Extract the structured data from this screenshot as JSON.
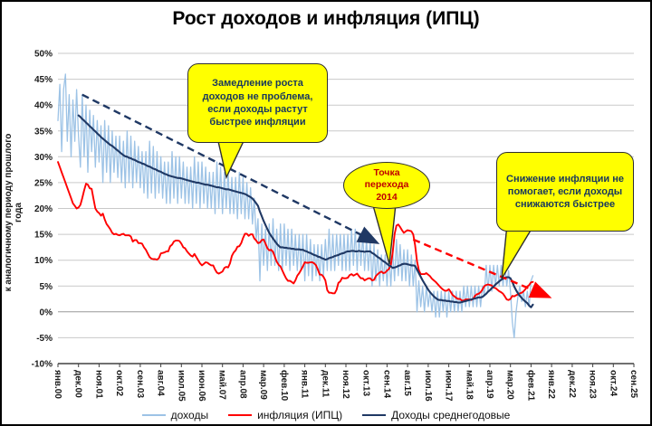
{
  "chart_data": {
    "type": "line",
    "title": "Рост  доходов и инфляция (ИПЦ)",
    "ylabel": "к аналогичному периоду прошлого года",
    "ylim": [
      -10,
      50
    ],
    "y_step": 5,
    "y_ticks": [
      "-10%",
      "-5%",
      "0%",
      "5%",
      "10%",
      "15%",
      "20%",
      "25%",
      "30%",
      "35%",
      "40%",
      "45%",
      "50%"
    ],
    "grid": "horizontal",
    "legend_position": "bottom",
    "x_unit": "monthly, month index 0 = янв.00",
    "x_total_months": 308,
    "x_ticks": [
      {
        "label": "янв.00",
        "month": 0
      },
      {
        "label": "дек.00",
        "month": 11
      },
      {
        "label": "ноя.01",
        "month": 22
      },
      {
        "label": "окт.02",
        "month": 33
      },
      {
        "label": "сен.03",
        "month": 44
      },
      {
        "label": "авг.04",
        "month": 55
      },
      {
        "label": "июл.05",
        "month": 66
      },
      {
        "label": "июн.06",
        "month": 77
      },
      {
        "label": "май.07",
        "month": 88
      },
      {
        "label": "апр.08",
        "month": 99
      },
      {
        "label": "мар.09",
        "month": 110
      },
      {
        "label": "фев.10",
        "month": 121
      },
      {
        "label": "янв.11",
        "month": 132
      },
      {
        "label": "дек.11",
        "month": 143
      },
      {
        "label": "ноя.12",
        "month": 154
      },
      {
        "label": "окт.13",
        "month": 165
      },
      {
        "label": "сен.14",
        "month": 176
      },
      {
        "label": "авг.15",
        "month": 187
      },
      {
        "label": "июл.16",
        "month": 198
      },
      {
        "label": "июн.17",
        "month": 209
      },
      {
        "label": "май.18",
        "month": 220
      },
      {
        "label": "апр.19",
        "month": 231
      },
      {
        "label": "мар.20",
        "month": 242
      },
      {
        "label": "фев.21",
        "month": 253
      },
      {
        "label": "янв.22",
        "month": 264
      },
      {
        "label": "дек.22",
        "month": 275
      },
      {
        "label": "ноя.23",
        "month": 286
      },
      {
        "label": "окт.24",
        "month": 297
      },
      {
        "label": "сен.25",
        "month": 308
      }
    ],
    "series": [
      {
        "name": "доходы",
        "color": "#9DC3E6",
        "width": 1.3,
        "start_month": 0,
        "values": [
          37,
          44,
          31,
          43,
          46,
          33,
          42,
          30,
          41,
          33,
          43,
          34,
          28,
          42,
          30,
          40,
          27,
          39,
          31,
          38,
          28,
          37,
          29,
          36,
          25,
          37,
          27,
          36,
          25,
          35,
          27,
          34,
          26,
          34,
          25,
          33,
          24,
          35,
          25,
          34,
          24,
          33,
          25,
          32,
          24,
          31,
          23,
          31,
          22,
          33,
          23,
          32,
          22,
          31,
          23,
          30,
          22,
          29,
          21,
          29,
          21,
          31,
          22,
          30,
          21,
          30,
          22,
          29,
          21,
          28,
          21,
          28,
          20,
          30,
          21,
          29,
          20,
          29,
          21,
          28,
          20,
          27,
          20,
          27,
          19,
          29,
          20,
          28,
          19,
          27,
          20,
          27,
          19,
          26,
          19,
          26,
          18,
          27,
          19,
          26,
          18,
          25,
          18,
          24,
          17,
          22,
          14,
          18,
          6,
          17,
          9,
          16,
          8,
          17,
          9,
          18,
          9,
          16,
          8,
          17,
          8,
          17,
          9,
          16,
          8,
          16,
          9,
          15,
          8,
          15,
          8,
          15,
          6,
          15,
          7,
          14,
          6,
          13,
          7,
          13,
          6,
          13,
          7,
          14,
          8,
          16,
          8,
          15,
          8,
          15,
          9,
          15,
          8,
          15,
          8,
          15,
          8,
          16,
          9,
          16,
          8,
          15,
          9,
          15,
          8,
          14,
          8,
          14,
          5,
          13,
          6,
          12,
          5,
          11,
          6,
          11,
          5,
          11,
          5,
          12,
          6,
          14,
          7,
          13,
          6,
          12,
          6,
          12,
          5,
          11,
          5,
          10,
          0,
          6,
          1,
          5,
          0,
          5,
          1,
          4,
          0,
          4,
          -1,
          4,
          -1,
          4,
          0,
          4,
          -1,
          4,
          0,
          4,
          0,
          4,
          0,
          4,
          0,
          5,
          1,
          5,
          1,
          5,
          1,
          5,
          1,
          5,
          1,
          5,
          3,
          9,
          4,
          9,
          4,
          9,
          5,
          9,
          5,
          9,
          5,
          9,
          5,
          8,
          4,
          -2,
          -5,
          0,
          3,
          5,
          2,
          4,
          1,
          4,
          1,
          6,
          7
        ]
      },
      {
        "name": "инфляция (ИПЦ)",
        "color": "#FF0000",
        "width": 1.9,
        "start_month": 0,
        "values": [
          29,
          28,
          27,
          26,
          25,
          24,
          23,
          22,
          21,
          20.5,
          20,
          20.2,
          20.7,
          22,
          23.5,
          24.8,
          24.6,
          23.9,
          23.8,
          21.9,
          20,
          19.4,
          19.1,
          18.6,
          19,
          17.9,
          17,
          16.5,
          16,
          15.3,
          15,
          15.1,
          14.9,
          14.8,
          15,
          15.1,
          14.8,
          14.8,
          14.8,
          14.6,
          13.6,
          13.9,
          13.9,
          13.3,
          13.3,
          13.2,
          12.5,
          12,
          11.3,
          10.6,
          10.3,
          10.2,
          10.2,
          10.1,
          10.4,
          11.3,
          11.4,
          11.5,
          11.7,
          11.7,
          12.7,
          13,
          13.6,
          13.8,
          13.8,
          13.7,
          13.2,
          12.5,
          12.3,
          11.7,
          11.3,
          10.9,
          10.7,
          11.2,
          10.6,
          10,
          9.4,
          9,
          9.3,
          9.6,
          9.5,
          9.2,
          9,
          9,
          8.2,
          7.6,
          7.4,
          7.6,
          7.8,
          8.5,
          8.7,
          8.6,
          9.4,
          10.8,
          11.5,
          11.9,
          12.6,
          12.7,
          13.3,
          14.3,
          15.1,
          15.1,
          14.7,
          15,
          15,
          14.2,
          13.8,
          13.3,
          13.4,
          13.9,
          14,
          13.2,
          12.3,
          11.9,
          12,
          11.6,
          10.7,
          9.7,
          9.1,
          8.8,
          8,
          7.2,
          6.5,
          6,
          6,
          5.8,
          5.5,
          6.1,
          7,
          7.5,
          8.1,
          8.8,
          9.6,
          9.5,
          9.5,
          9.6,
          9.6,
          9.4,
          9,
          8.2,
          7.2,
          7.2,
          6.8,
          6.1,
          4.2,
          3.7,
          3.7,
          3.6,
          3.6,
          4.3,
          5.6,
          5.9,
          6.6,
          6.5,
          6.5,
          6.6,
          7.1,
          7.3,
          7,
          7.2,
          7.4,
          6.9,
          6.5,
          6.5,
          6.1,
          6.3,
          6.5,
          6.5,
          6.1,
          6.2,
          6.9,
          7.3,
          7.6,
          7.8,
          7.5,
          7.6,
          8,
          8.3,
          9.1,
          11.4,
          15,
          16.7,
          16.9,
          16.4,
          15.8,
          15.3,
          15.6,
          15.8,
          15.7,
          15.6,
          15,
          12.9,
          9.8,
          8.1,
          7.3,
          7.3,
          7.3,
          7.5,
          7.2,
          6.9,
          6.4,
          6.1,
          5.8,
          5.4,
          5,
          4.6,
          4.3,
          4.1,
          4.1,
          4.4,
          3.9,
          3.3,
          3,
          2.7,
          2.5,
          2.5,
          2.2,
          2.2,
          2.4,
          2.4,
          2.4,
          2.3,
          2.5,
          3.1,
          3.4,
          3.5,
          3.8,
          4.3,
          5,
          5.2,
          5.3,
          5.2,
          5.1,
          4.7,
          4.6,
          4.3,
          4,
          3.8,
          3.5,
          3,
          2.4,
          2.3,
          2.5,
          3.1,
          3,
          3.2,
          3.4,
          3.6,
          3.7,
          4,
          4.4,
          4.9,
          5.2,
          5.7,
          5.8
        ]
      },
      {
        "name": "Доходы среднегодовые",
        "color": "#1F3864",
        "width": 2.1,
        "start_month": 11,
        "values": [
          38,
          37.7,
          37.3,
          37,
          36.6,
          36.3,
          35.9,
          35.6,
          35.2,
          34.9,
          34.5,
          34.2,
          33.8,
          33.5,
          33.2,
          32.9,
          32.6,
          32.3,
          32.1,
          31.8,
          31.5,
          31.2,
          30.9,
          30.6,
          30.3,
          30.1,
          30,
          29.8,
          29.7,
          29.5,
          29.4,
          29.2,
          29,
          28.9,
          28.7,
          28.6,
          28.4,
          28.2,
          28.1,
          27.9,
          27.7,
          27.6,
          27.4,
          27.2,
          27.1,
          26.9,
          26.7,
          26.6,
          26.4,
          26.3,
          26.2,
          26.1,
          26,
          25.9,
          25.9,
          25.8,
          25.7,
          25.6,
          25.5,
          25.4,
          25.3,
          25.2,
          25.1,
          25,
          25,
          24.9,
          24.8,
          24.7,
          24.6,
          24.6,
          24.5,
          24.4,
          24.3,
          24.2,
          24.1,
          24.1,
          24,
          23.9,
          23.8,
          23.7,
          23.7,
          23.6,
          23.5,
          23.4,
          23.3,
          23.2,
          23.1,
          23,
          22.9,
          22.8,
          22.6,
          22.4,
          22.2,
          21.9,
          21.5,
          21,
          20.5,
          19.4,
          18.5,
          17.6,
          16.8,
          16,
          15.3,
          14.7,
          14.2,
          13.7,
          13.2,
          12.8,
          12.5,
          12.5,
          12.4,
          12.4,
          12.3,
          12.3,
          12.2,
          12.2,
          12.1,
          12.1,
          12.1,
          12,
          12,
          11.8,
          11.7,
          11.5,
          11.4,
          11.2,
          11,
          10.9,
          10.7,
          10.6,
          10.4,
          10.3,
          10.1,
          10.2,
          10.4,
          10.5,
          10.6,
          10.8,
          10.9,
          11,
          11.2,
          11.3,
          11.4,
          11.6,
          11.7,
          11.7,
          11.8,
          11.8,
          11.7,
          11.7,
          11.8,
          11.7,
          11.7,
          11.6,
          11.7,
          11.7,
          11.7,
          11.4,
          11.2,
          10.9,
          10.6,
          10.4,
          10.1,
          9.8,
          9.6,
          9.3,
          9,
          8.8,
          8.5,
          8.6,
          8.7,
          8.9,
          9,
          9.2,
          9.3,
          9.3,
          9.2,
          9.1,
          9,
          9,
          8.9,
          8.2,
          7.5,
          6.8,
          6.1,
          5.5,
          4.9,
          4.3,
          3.8,
          3.4,
          3,
          2.7,
          2.4,
          2.3,
          2.3,
          2.2,
          2.2,
          2.1,
          2.1,
          2,
          2,
          1.9,
          1.9,
          1.8,
          1.8,
          1.9,
          2,
          2.1,
          2.2,
          2.3,
          2.4,
          2.5,
          2.6,
          2.7,
          2.8,
          2.8,
          2.9,
          3.2,
          3.5,
          3.9,
          4.2,
          4.6,
          4.9,
          5.3,
          5.6,
          5.9,
          6.2,
          6.4,
          6.6,
          6.7,
          6.7,
          6.5,
          5.8,
          4.9,
          4.2,
          3.6,
          3.1,
          2.7,
          2.3,
          2,
          1.7,
          1.2,
          0.9,
          1.4
        ]
      }
    ],
    "trend_arrows": [
      {
        "name": "incomes-trend-arrow",
        "color": "#1F3864",
        "from_month": 13,
        "from_value": 42,
        "to_month": 170,
        "to_value": 13.5
      },
      {
        "name": "inflation-trend-arrow",
        "color": "#FF0000",
        "from_month": 190,
        "from_value": 14,
        "to_month": 262,
        "to_value": 3
      }
    ],
    "annotations": [
      {
        "shape": "rounded-rect",
        "fill": "#FFFF00",
        "text_color": "#17375E",
        "text": "Замедление роста доходов не проблема, если доходы растут быстрее инфляции"
      },
      {
        "shape": "ellipse",
        "fill": "#FFFF00",
        "text_color": "#C00000",
        "text": "Точка перехода 2014"
      },
      {
        "shape": "rounded-rect",
        "fill": "#FFFF00",
        "text_color": "#17375E",
        "text": "Снижение инфляции не помогает, если доходы снижаются быстрее"
      }
    ]
  }
}
